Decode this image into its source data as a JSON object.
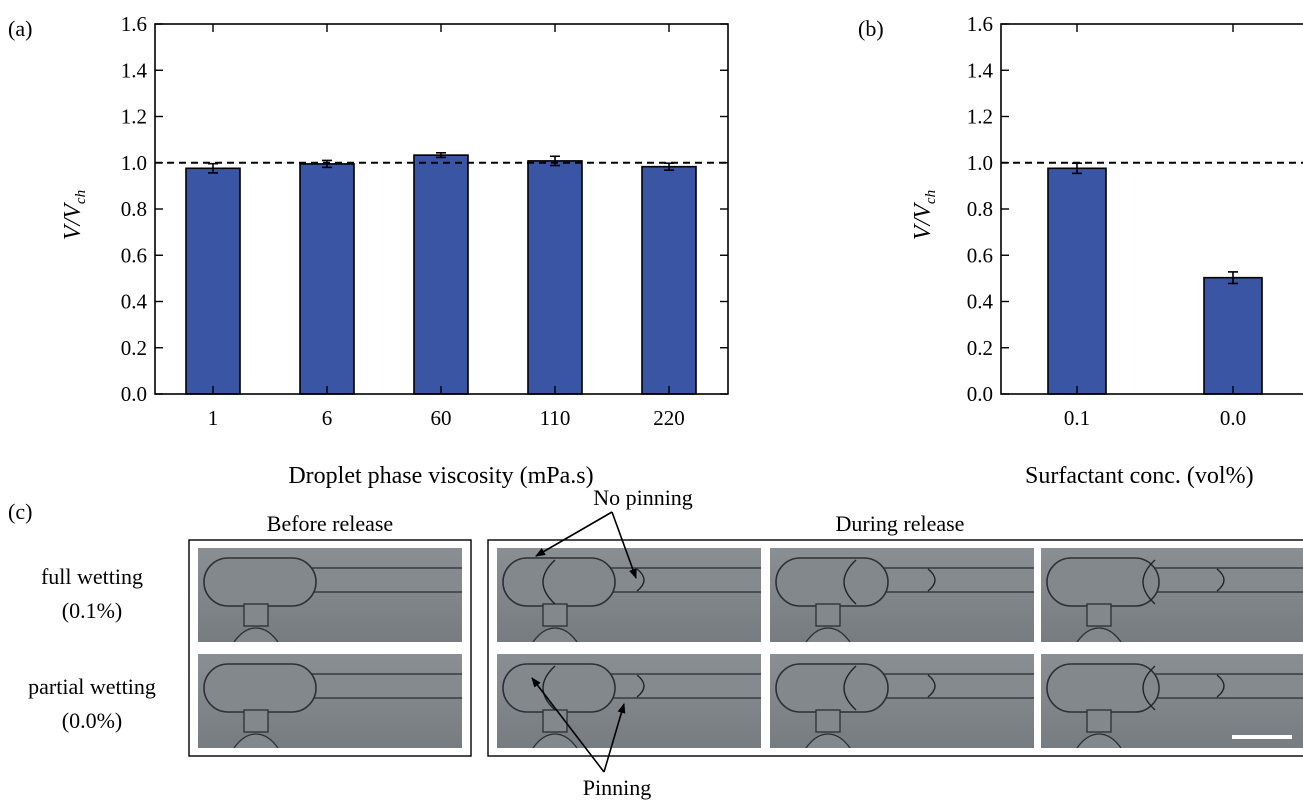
{
  "chart_data": [
    {
      "type": "bar",
      "panel_label": "(a)",
      "categories": [
        "1",
        "6",
        "60",
        "110",
        "220"
      ],
      "values": [
        0.976,
        0.995,
        1.033,
        1.008,
        0.983
      ],
      "errors": [
        0.02,
        0.015,
        0.01,
        0.02,
        0.015
      ],
      "xlabel": "Droplet phase viscosity (mPa.s)",
      "ylabel_main": "V/V",
      "ylabel_sub": "ch",
      "ylim": [
        0.0,
        1.6
      ],
      "yticks": [
        "0.0",
        "0.2",
        "0.4",
        "0.6",
        "0.8",
        "1.0",
        "1.2",
        "1.4",
        "1.6"
      ],
      "reference_line": 1.0,
      "bar_color": "#3a55a4"
    },
    {
      "type": "bar",
      "panel_label": "(b)",
      "categories": [
        "0.1",
        "0.0"
      ],
      "values": [
        0.976,
        0.503
      ],
      "errors": [
        0.022,
        0.025
      ],
      "xlabel": "Surfactant conc. (vol%)",
      "ylabel_main": "V/V",
      "ylabel_sub": "ch",
      "ylim": [
        0.0,
        1.6
      ],
      "yticks": [
        "0.0",
        "0.2",
        "0.4",
        "0.6",
        "0.8",
        "1.0",
        "1.2",
        "1.4",
        "1.6"
      ],
      "reference_line": 1.0,
      "bar_color": "#3a55a4"
    }
  ],
  "panel_c": {
    "label": "(c)",
    "before_title": "Before release",
    "during_title": "During release",
    "rows": [
      {
        "label_line1": "full wetting",
        "label_line2": "(0.1%)"
      },
      {
        "label_line1": "partial wetting",
        "label_line2": "(0.0%)"
      }
    ],
    "annotation_top": "No pinning",
    "annotation_bottom": "Pinning",
    "image_bg": "#7d8287"
  }
}
